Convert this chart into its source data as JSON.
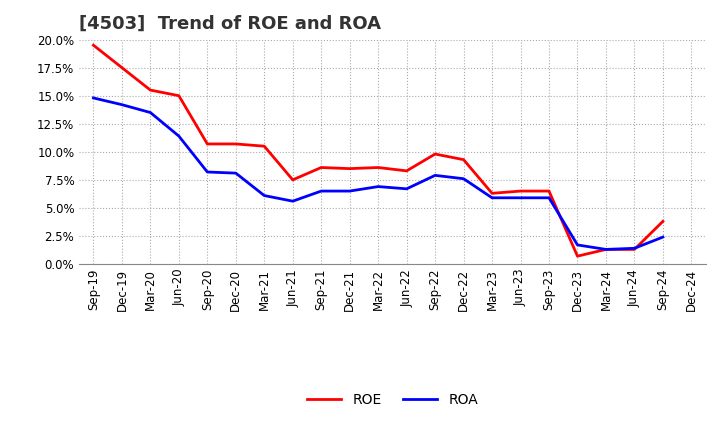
{
  "title": "[4503]  Trend of ROE and ROA",
  "labels": [
    "Sep-19",
    "Dec-19",
    "Mar-20",
    "Jun-20",
    "Sep-20",
    "Dec-20",
    "Mar-21",
    "Jun-21",
    "Sep-21",
    "Dec-21",
    "Mar-22",
    "Jun-22",
    "Sep-22",
    "Dec-22",
    "Mar-23",
    "Jun-23",
    "Sep-23",
    "Dec-23",
    "Mar-24",
    "Jun-24",
    "Sep-24",
    "Dec-24"
  ],
  "ROE": [
    19.5,
    17.5,
    15.5,
    15.0,
    10.7,
    10.7,
    10.5,
    7.5,
    8.6,
    8.5,
    8.6,
    8.3,
    9.8,
    9.3,
    6.3,
    6.5,
    6.5,
    0.7,
    1.3,
    1.3,
    3.8,
    null
  ],
  "ROA": [
    14.8,
    14.2,
    13.5,
    11.4,
    8.2,
    8.1,
    6.1,
    5.6,
    6.5,
    6.5,
    6.9,
    6.7,
    7.9,
    7.6,
    5.9,
    5.9,
    5.9,
    1.7,
    1.3,
    1.4,
    2.4,
    null
  ],
  "roe_color": "#ff0000",
  "roa_color": "#0000ff",
  "background_color": "#ffffff",
  "grid_color": "#aaaaaa",
  "ylim": [
    0.0,
    20.0
  ],
  "yticks": [
    0.0,
    2.5,
    5.0,
    7.5,
    10.0,
    12.5,
    15.0,
    17.5,
    20.0
  ],
  "title_fontsize": 13,
  "axis_fontsize": 8.5,
  "legend_fontsize": 10,
  "line_width": 2.0
}
